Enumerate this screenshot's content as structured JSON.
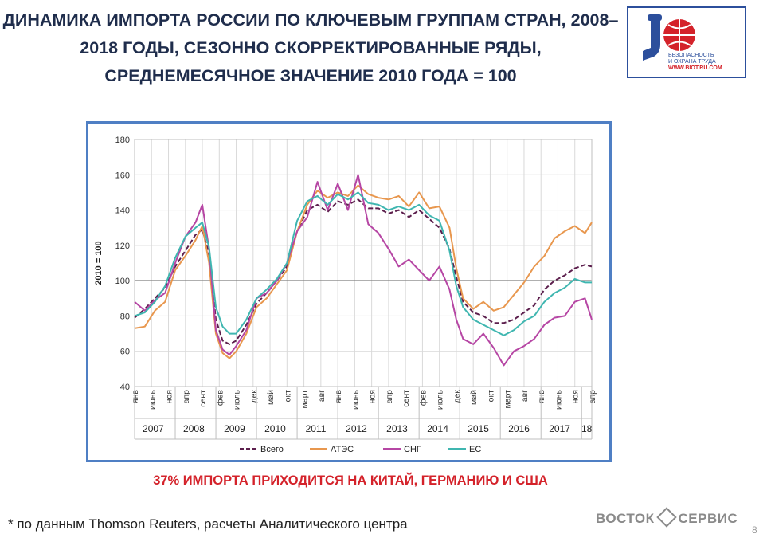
{
  "slide": {
    "title": "ДИНАМИКА ИМПОРТА РОССИИ ПО КЛЮЧЕВЫМ ГРУППАМ СТРАН, 2008–2018 ГОДЫ, СЕЗОННО СКОРРЕКТИРОВАННЫЕ РЯДЫ, СРЕДНЕМЕСЯЧНОЕ ЗНАЧЕНИЕ 2010 ГОДА = 100",
    "highlight": "37% ИМПОРТА ПРИХОДИТСЯ НА КИТАЙ, ГЕРМАНИЮ И США",
    "footnote": "* по данным Thomson Reuters, расчеты Аналитического центра",
    "brand_left": "ВОСТОК",
    "brand_right": "СЕРВИС",
    "page_number": "8"
  },
  "logo": {
    "line1": "БЕЗОПАСНОСТЬ",
    "line2": "И ОХРАНА ТРУДА",
    "url": "WWW.BIOT.RU.COM",
    "icon": "worker-globe-icon",
    "accent": "#2c4f9c",
    "red": "#d4222a"
  },
  "chart_data": {
    "type": "line",
    "ylabel": "2010 = 100",
    "ylim": [
      40,
      180
    ],
    "yticks": [
      40,
      60,
      80,
      100,
      120,
      140,
      160,
      180
    ],
    "reference_line": 100,
    "grid": true,
    "legend_position": "bottom",
    "x_start": "2007-01",
    "x_end": "2018-04",
    "month_tick_labels": [
      "янв",
      "июнь",
      "ноя",
      "апр",
      "сент",
      "фев",
      "июль",
      "дек",
      "май",
      "окт",
      "март",
      "авг",
      "янв",
      "июнь",
      "ноя",
      "апр",
      "сент",
      "фев",
      "июль",
      "дек",
      "май",
      "окт",
      "март",
      "авг",
      "янв",
      "июнь",
      "ноя",
      "апр"
    ],
    "years": [
      "2007",
      "2008",
      "2009",
      "2010",
      "2011",
      "2012",
      "2013",
      "2014",
      "2015",
      "2016",
      "2017",
      "18"
    ],
    "series": [
      {
        "name": "Всего",
        "color": "#5c1f4d",
        "dash": true,
        "points": [
          [
            "2007-01",
            79
          ],
          [
            "2007-04",
            84
          ],
          [
            "2007-07",
            90
          ],
          [
            "2007-10",
            96
          ],
          [
            "2008-01",
            108
          ],
          [
            "2008-04",
            117
          ],
          [
            "2008-07",
            126
          ],
          [
            "2008-09",
            129
          ],
          [
            "2008-11",
            115
          ],
          [
            "2009-01",
            78
          ],
          [
            "2009-03",
            66
          ],
          [
            "2009-05",
            64
          ],
          [
            "2009-07",
            66
          ],
          [
            "2009-10",
            75
          ],
          [
            "2010-01",
            87
          ],
          [
            "2010-04",
            93
          ],
          [
            "2010-07",
            100
          ],
          [
            "2010-10",
            108
          ],
          [
            "2011-01",
            128
          ],
          [
            "2011-04",
            140
          ],
          [
            "2011-07",
            143
          ],
          [
            "2011-10",
            139
          ],
          [
            "2012-01",
            145
          ],
          [
            "2012-04",
            143
          ],
          [
            "2012-07",
            146
          ],
          [
            "2012-10",
            141
          ],
          [
            "2013-01",
            141
          ],
          [
            "2013-04",
            138
          ],
          [
            "2013-07",
            140
          ],
          [
            "2013-10",
            136
          ],
          [
            "2014-01",
            140
          ],
          [
            "2014-04",
            135
          ],
          [
            "2014-07",
            130
          ],
          [
            "2014-10",
            118
          ],
          [
            "2014-12",
            102
          ],
          [
            "2015-02",
            88
          ],
          [
            "2015-05",
            82
          ],
          [
            "2015-08",
            80
          ],
          [
            "2015-11",
            76
          ],
          [
            "2016-02",
            76
          ],
          [
            "2016-05",
            78
          ],
          [
            "2016-08",
            82
          ],
          [
            "2016-11",
            86
          ],
          [
            "2017-02",
            95
          ],
          [
            "2017-05",
            100
          ],
          [
            "2017-08",
            103
          ],
          [
            "2017-11",
            107
          ],
          [
            "2018-02",
            109
          ],
          [
            "2018-04",
            108
          ]
        ]
      },
      {
        "name": "АТЭС",
        "color": "#e8974e",
        "dash": false,
        "points": [
          [
            "2007-01",
            73
          ],
          [
            "2007-04",
            74
          ],
          [
            "2007-07",
            83
          ],
          [
            "2007-10",
            88
          ],
          [
            "2008-01",
            106
          ],
          [
            "2008-04",
            114
          ],
          [
            "2008-07",
            123
          ],
          [
            "2008-09",
            131
          ],
          [
            "2008-11",
            110
          ],
          [
            "2009-01",
            70
          ],
          [
            "2009-03",
            59
          ],
          [
            "2009-05",
            56
          ],
          [
            "2009-07",
            60
          ],
          [
            "2009-10",
            70
          ],
          [
            "2010-01",
            85
          ],
          [
            "2010-04",
            90
          ],
          [
            "2010-07",
            98
          ],
          [
            "2010-10",
            106
          ],
          [
            "2011-01",
            128
          ],
          [
            "2011-04",
            143
          ],
          [
            "2011-07",
            151
          ],
          [
            "2011-10",
            147
          ],
          [
            "2012-01",
            150
          ],
          [
            "2012-04",
            148
          ],
          [
            "2012-07",
            154
          ],
          [
            "2012-10",
            149
          ],
          [
            "2013-01",
            147
          ],
          [
            "2013-04",
            146
          ],
          [
            "2013-07",
            148
          ],
          [
            "2013-10",
            142
          ],
          [
            "2014-01",
            150
          ],
          [
            "2014-04",
            141
          ],
          [
            "2014-07",
            142
          ],
          [
            "2014-10",
            130
          ],
          [
            "2014-12",
            107
          ],
          [
            "2015-02",
            90
          ],
          [
            "2015-05",
            84
          ],
          [
            "2015-08",
            88
          ],
          [
            "2015-11",
            83
          ],
          [
            "2016-02",
            85
          ],
          [
            "2016-05",
            92
          ],
          [
            "2016-08",
            99
          ],
          [
            "2016-11",
            108
          ],
          [
            "2017-02",
            114
          ],
          [
            "2017-05",
            124
          ],
          [
            "2017-08",
            128
          ],
          [
            "2017-11",
            131
          ],
          [
            "2018-02",
            127
          ],
          [
            "2018-04",
            133
          ]
        ]
      },
      {
        "name": "СНГ",
        "color": "#b646a4",
        "dash": false,
        "points": [
          [
            "2007-01",
            88
          ],
          [
            "2007-04",
            83
          ],
          [
            "2007-07",
            89
          ],
          [
            "2007-10",
            93
          ],
          [
            "2008-01",
            110
          ],
          [
            "2008-04",
            125
          ],
          [
            "2008-07",
            133
          ],
          [
            "2008-09",
            143
          ],
          [
            "2008-11",
            118
          ],
          [
            "2009-01",
            72
          ],
          [
            "2009-03",
            61
          ],
          [
            "2009-05",
            58
          ],
          [
            "2009-07",
            63
          ],
          [
            "2009-10",
            72
          ],
          [
            "2010-01",
            90
          ],
          [
            "2010-04",
            93
          ],
          [
            "2010-07",
            100
          ],
          [
            "2010-10",
            110
          ],
          [
            "2011-01",
            128
          ],
          [
            "2011-04",
            136
          ],
          [
            "2011-07",
            156
          ],
          [
            "2011-10",
            140
          ],
          [
            "2012-01",
            155
          ],
          [
            "2012-04",
            140
          ],
          [
            "2012-07",
            160
          ],
          [
            "2012-10",
            132
          ],
          [
            "2013-01",
            127
          ],
          [
            "2013-04",
            118
          ],
          [
            "2013-07",
            108
          ],
          [
            "2013-10",
            112
          ],
          [
            "2014-01",
            106
          ],
          [
            "2014-04",
            100
          ],
          [
            "2014-07",
            108
          ],
          [
            "2014-10",
            95
          ],
          [
            "2014-12",
            78
          ],
          [
            "2015-02",
            67
          ],
          [
            "2015-05",
            64
          ],
          [
            "2015-08",
            70
          ],
          [
            "2015-11",
            62
          ],
          [
            "2016-02",
            52
          ],
          [
            "2016-05",
            60
          ],
          [
            "2016-08",
            63
          ],
          [
            "2016-11",
            67
          ],
          [
            "2017-02",
            75
          ],
          [
            "2017-05",
            79
          ],
          [
            "2017-08",
            80
          ],
          [
            "2017-11",
            88
          ],
          [
            "2018-02",
            90
          ],
          [
            "2018-04",
            78
          ]
        ]
      },
      {
        "name": "ЕС",
        "color": "#3fb6b0",
        "dash": false,
        "points": [
          [
            "2007-01",
            80
          ],
          [
            "2007-04",
            82
          ],
          [
            "2007-07",
            88
          ],
          [
            "2007-10",
            97
          ],
          [
            "2008-01",
            113
          ],
          [
            "2008-04",
            125
          ],
          [
            "2008-07",
            130
          ],
          [
            "2008-09",
            133
          ],
          [
            "2008-11",
            119
          ],
          [
            "2009-01",
            85
          ],
          [
            "2009-03",
            74
          ],
          [
            "2009-05",
            70
          ],
          [
            "2009-07",
            70
          ],
          [
            "2009-10",
            78
          ],
          [
            "2010-01",
            90
          ],
          [
            "2010-04",
            95
          ],
          [
            "2010-07",
            101
          ],
          [
            "2010-10",
            110
          ],
          [
            "2011-01",
            134
          ],
          [
            "2011-04",
            145
          ],
          [
            "2011-07",
            148
          ],
          [
            "2011-10",
            143
          ],
          [
            "2012-01",
            149
          ],
          [
            "2012-04",
            146
          ],
          [
            "2012-07",
            150
          ],
          [
            "2012-10",
            144
          ],
          [
            "2013-01",
            143
          ],
          [
            "2013-04",
            140
          ],
          [
            "2013-07",
            142
          ],
          [
            "2013-10",
            140
          ],
          [
            "2014-01",
            143
          ],
          [
            "2014-04",
            137
          ],
          [
            "2014-07",
            134
          ],
          [
            "2014-10",
            117
          ],
          [
            "2014-12",
            97
          ],
          [
            "2015-02",
            85
          ],
          [
            "2015-05",
            78
          ],
          [
            "2015-08",
            75
          ],
          [
            "2015-11",
            72
          ],
          [
            "2016-02",
            69
          ],
          [
            "2016-05",
            72
          ],
          [
            "2016-08",
            77
          ],
          [
            "2016-11",
            80
          ],
          [
            "2017-02",
            88
          ],
          [
            "2017-05",
            93
          ],
          [
            "2017-08",
            96
          ],
          [
            "2017-11",
            101
          ],
          [
            "2018-02",
            99
          ],
          [
            "2018-04",
            99
          ]
        ]
      }
    ]
  }
}
